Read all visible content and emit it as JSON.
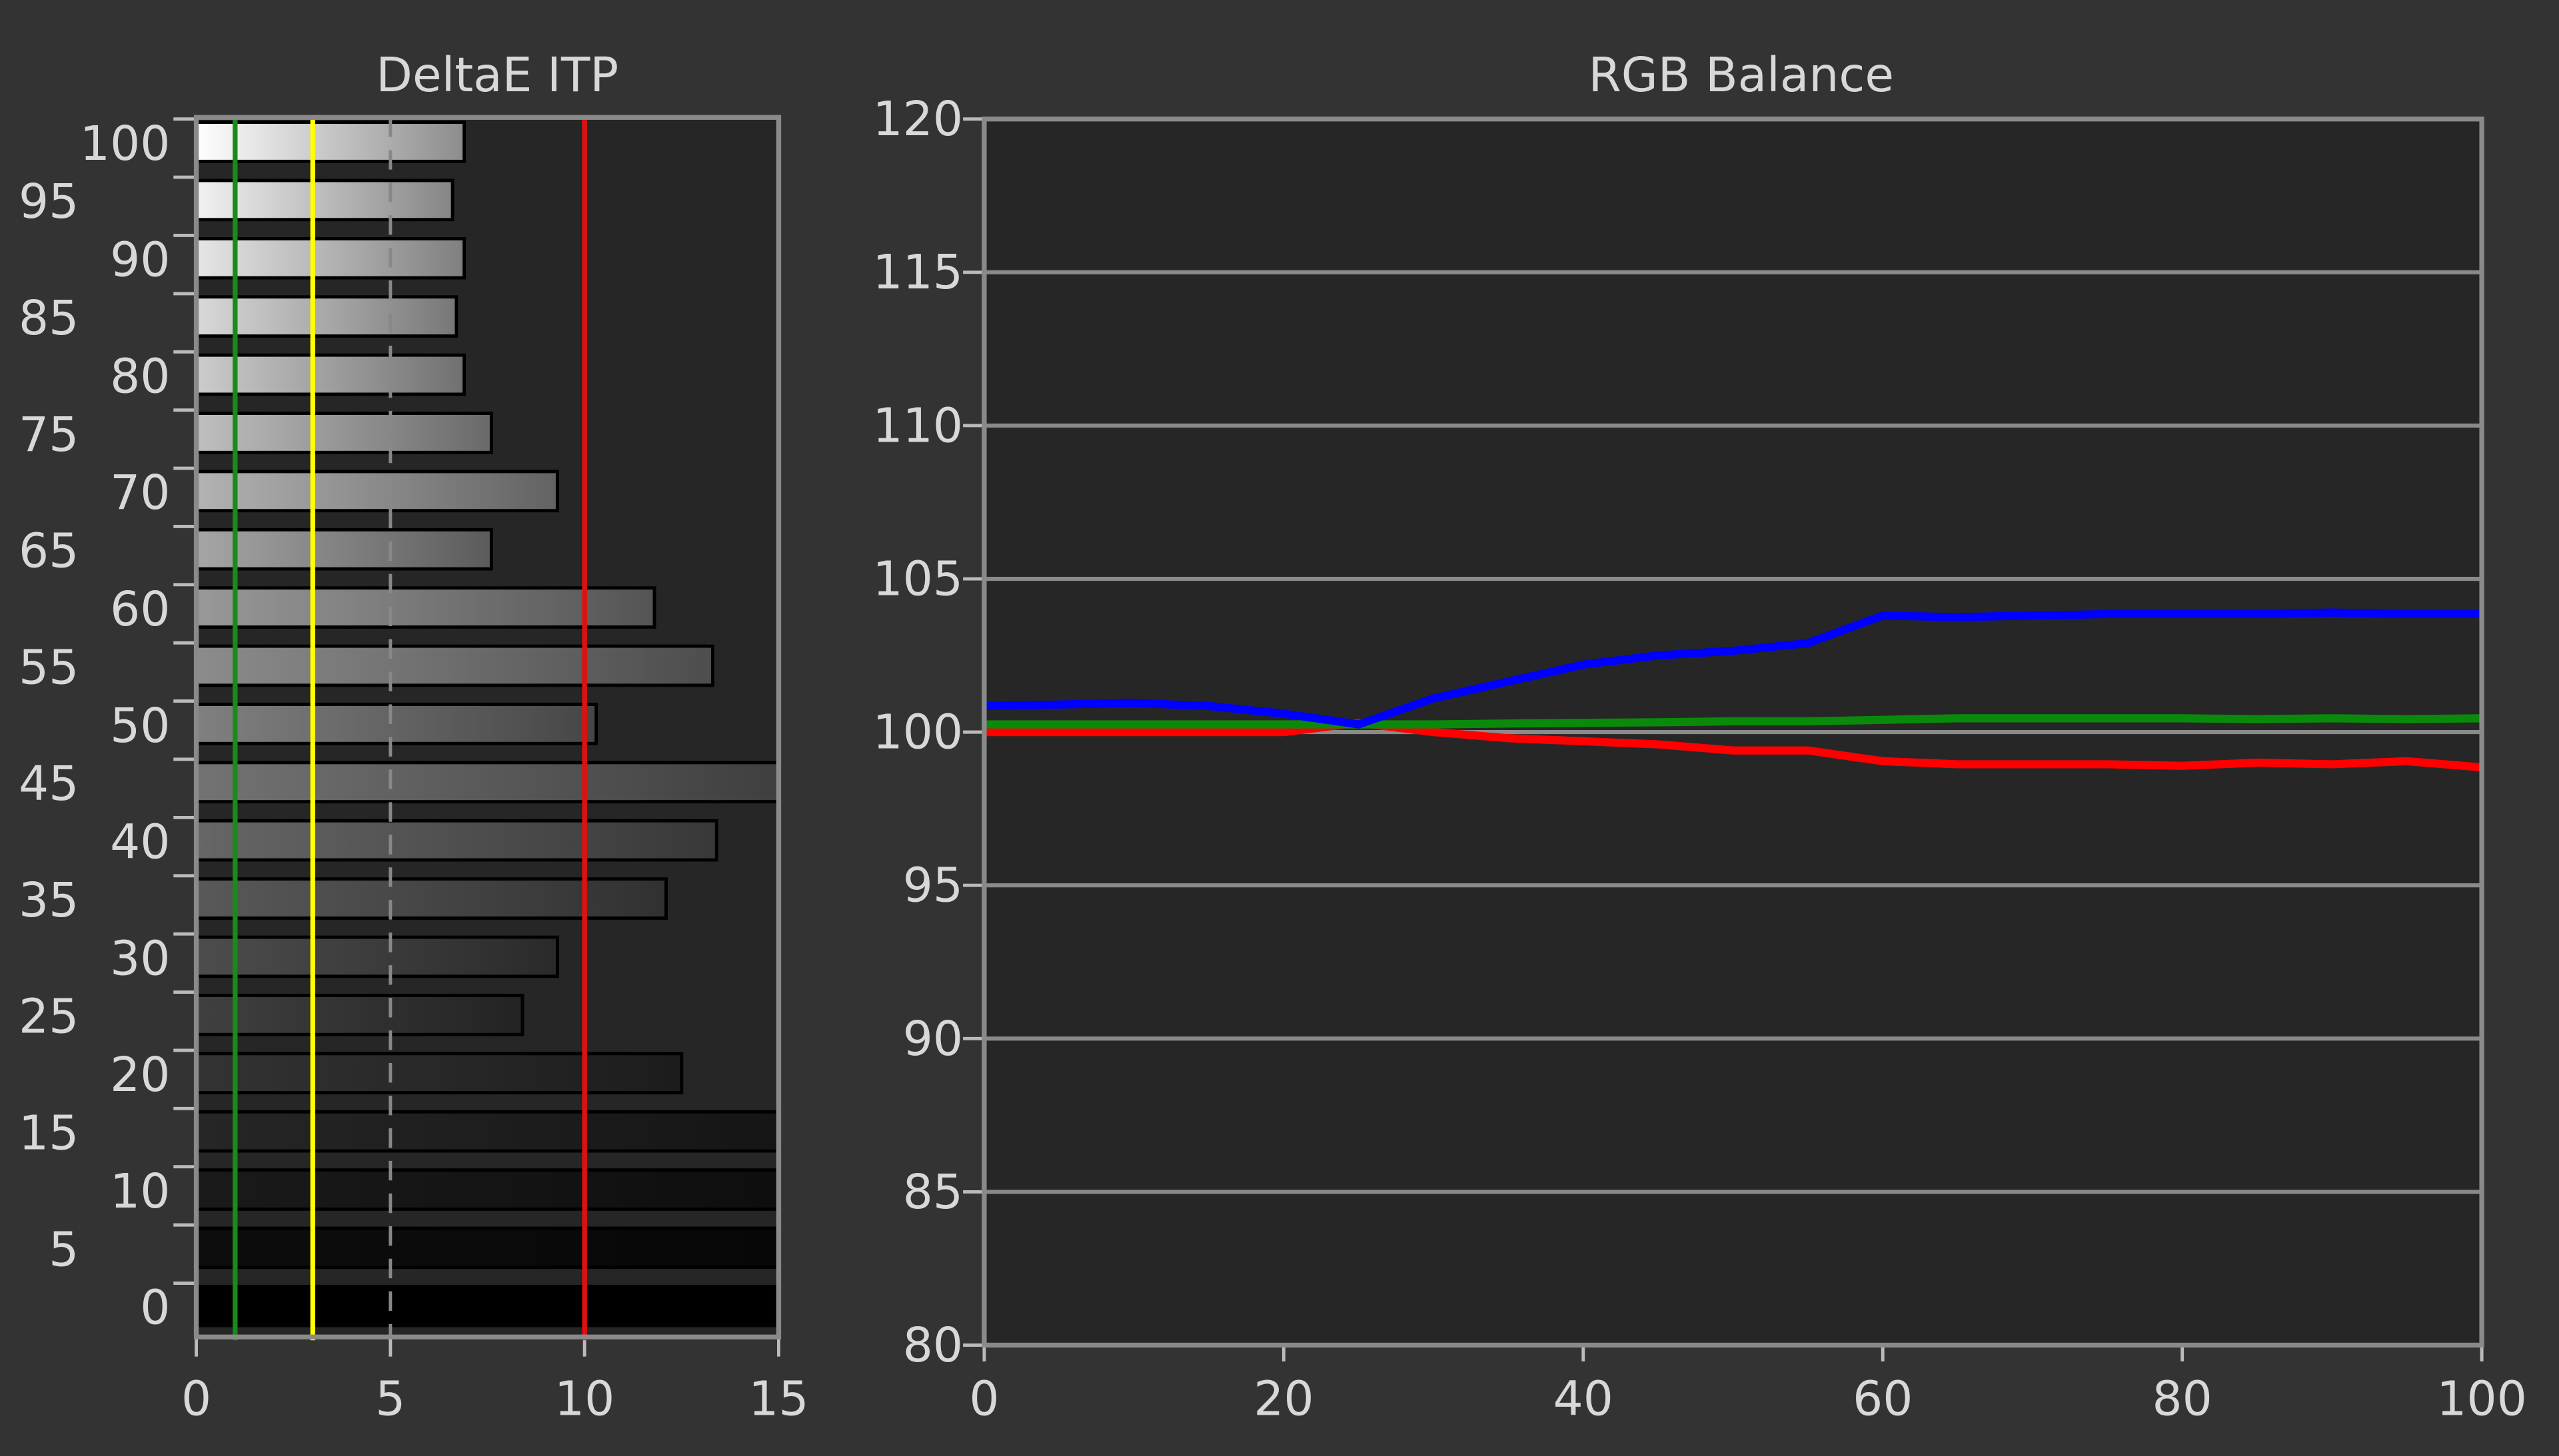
{
  "chart_data": [
    {
      "type": "hbar",
      "title": "DeltaE ITP",
      "categories": [
        0,
        5,
        10,
        15,
        20,
        25,
        30,
        35,
        40,
        45,
        50,
        55,
        60,
        65,
        70,
        75,
        80,
        85,
        90,
        95,
        100
      ],
      "values": [
        15,
        15,
        15,
        15,
        12.5,
        8.4,
        9.3,
        12.1,
        13.4,
        15,
        10.3,
        13.3,
        11.8,
        7.6,
        9.3,
        7.6,
        6.9,
        6.7,
        6.9,
        6.6,
        6.9
      ],
      "xlim": [
        0,
        15
      ],
      "xticks": [
        0,
        5,
        10,
        15
      ],
      "grid": true,
      "reference_lines": [
        {
          "value": 1,
          "color": "#1a8a1a"
        },
        {
          "value": 3,
          "color": "#ffff00"
        },
        {
          "value": 10,
          "color": "#e01010"
        }
      ]
    },
    {
      "type": "line",
      "title": "RGB Balance",
      "x": [
        0,
        5,
        10,
        15,
        20,
        25,
        30,
        35,
        40,
        45,
        50,
        55,
        60,
        65,
        70,
        75,
        80,
        85,
        90,
        95,
        100
      ],
      "series": [
        {
          "name": "Red",
          "color": "#ff0000",
          "values": [
            100,
            100,
            100,
            100,
            100,
            100.3,
            100,
            99.8,
            99.7,
            99.6,
            99.4,
            99.4,
            99.05,
            98.95,
            98.95,
            98.95,
            98.9,
            99,
            98.95,
            99.05,
            98.85
          ]
        },
        {
          "name": "Green",
          "color": "#0a8a0a",
          "values": [
            100.25,
            100.25,
            100.25,
            100.25,
            100.25,
            100.25,
            100.25,
            100.28,
            100.3,
            100.32,
            100.35,
            100.35,
            100.4,
            100.45,
            100.45,
            100.45,
            100.45,
            100.42,
            100.45,
            100.42,
            100.45
          ]
        },
        {
          "name": "Blue",
          "color": "#0000ff",
          "values": [
            100.85,
            100.9,
            100.95,
            100.85,
            100.6,
            100.25,
            101.1,
            101.65,
            102.2,
            102.5,
            102.65,
            102.9,
            103.8,
            103.75,
            103.8,
            103.85,
            103.85,
            103.85,
            103.9,
            103.85,
            103.85
          ]
        }
      ],
      "xlim": [
        0,
        100
      ],
      "xticks": [
        0,
        20,
        40,
        60,
        80,
        100
      ],
      "ylim": [
        80,
        120
      ],
      "yticks": [
        80,
        85,
        90,
        95,
        100,
        105,
        110,
        115,
        120
      ],
      "grid": true
    }
  ]
}
